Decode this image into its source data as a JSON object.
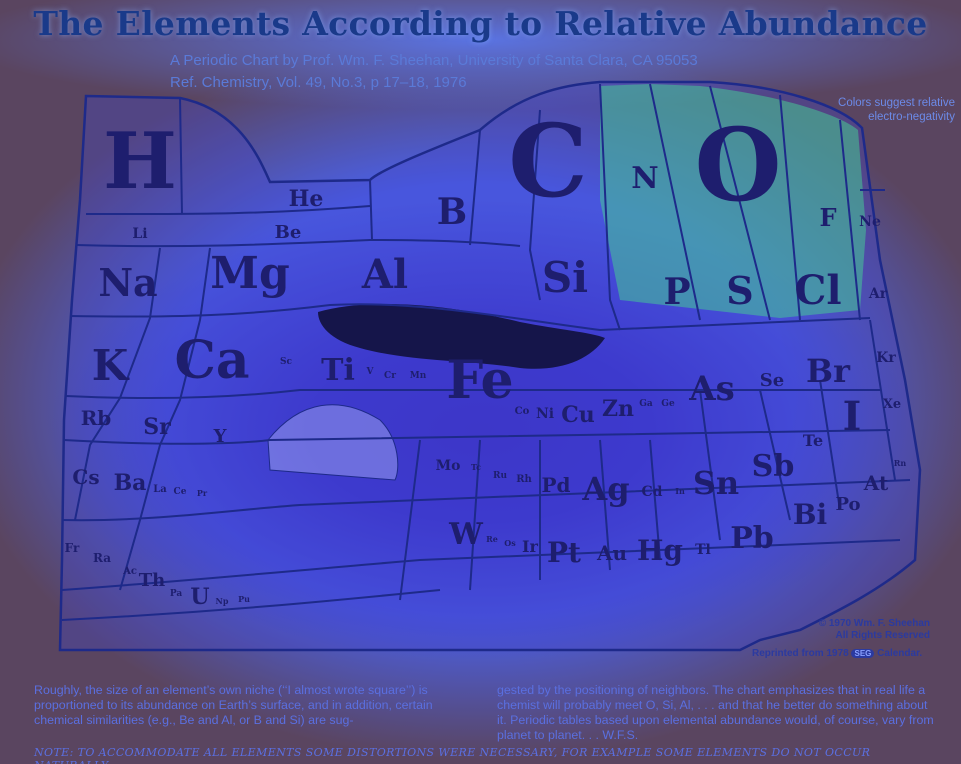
{
  "header": {
    "title": "The Elements According to Relative Abundance",
    "subtitle_line1": "A Periodic Chart by Prof. Wm. F. Sheehan, University of Santa Clara, CA 95053",
    "subtitle_line2": "Ref. Chemistry, Vol. 49, No.3, p 17–18, 1976"
  },
  "side_note": "Colors suggest relative electro-negativity",
  "copyright": {
    "line1": "© 1970 Wm. F. Sheehan",
    "line2": "All Rights Reserved",
    "reprint": "Reprinted from 1978",
    "badge": "SEG",
    "calendar": "Calendar."
  },
  "body": {
    "left": "Roughly, the size of an element’s own niche (‘‘I almost wrote square’’) is proportioned to its abundance on Earth’s surface, and in addition, certain chemical similarities (e.g., Be and Al, or B and Si) are sug-",
    "right": "gested by the positioning of neighbors. The chart emphasizes that in real life a chemist will probably meet O, Si, Al, . . . and that he better do something about it. Periodic tables based upon elemental abundance would, of course, vary from planet to planet. . . W.F.S."
  },
  "footnote": "NOTE: TO ACCOMMODATE ALL ELEMENTS SOME DISTORTIONS WERE NECESSARY, FOR EXAMPLE SOME ELEMENTS DO NOT OCCUR NATURALLY.",
  "elements": [
    {
      "sym": "H",
      "size": 78
    },
    {
      "sym": "He",
      "size": 22
    },
    {
      "sym": "Li",
      "size": 14
    },
    {
      "sym": "Be",
      "size": 18
    },
    {
      "sym": "B",
      "size": 36
    },
    {
      "sym": "C",
      "size": 100
    },
    {
      "sym": "N",
      "size": 30
    },
    {
      "sym": "O",
      "size": 100
    },
    {
      "sym": "F",
      "size": 24
    },
    {
      "sym": "Ne",
      "size": 14
    },
    {
      "sym": "Na",
      "size": 38
    },
    {
      "sym": "Mg",
      "size": 44
    },
    {
      "sym": "Al",
      "size": 40
    },
    {
      "sym": "Si",
      "size": 42
    },
    {
      "sym": "P",
      "size": 36
    },
    {
      "sym": "S",
      "size": 38
    },
    {
      "sym": "Cl",
      "size": 40
    },
    {
      "sym": "Ar",
      "size": 14
    },
    {
      "sym": "K",
      "size": 42
    },
    {
      "sym": "Ca",
      "size": 52
    },
    {
      "sym": "Sc",
      "size": 9
    },
    {
      "sym": "Ti",
      "size": 30
    },
    {
      "sym": "V",
      "size": 9
    },
    {
      "sym": "Cr",
      "size": 9
    },
    {
      "sym": "Mn",
      "size": 9
    },
    {
      "sym": "Fe",
      "size": 52
    },
    {
      "sym": "Co",
      "size": 10
    },
    {
      "sym": "Ni",
      "size": 14
    },
    {
      "sym": "Cu",
      "size": 22
    },
    {
      "sym": "Zn",
      "size": 22
    },
    {
      "sym": "Ga",
      "size": 9
    },
    {
      "sym": "Ge",
      "size": 9
    },
    {
      "sym": "As",
      "size": 34
    },
    {
      "sym": "Se",
      "size": 18
    },
    {
      "sym": "Br",
      "size": 32
    },
    {
      "sym": "Kr",
      "size": 14
    },
    {
      "sym": "Rb",
      "size": 20
    },
    {
      "sym": "Sr",
      "size": 22
    },
    {
      "sym": "Y",
      "size": 18
    },
    {
      "sym": "Mo",
      "size": 14
    },
    {
      "sym": "Tc",
      "size": 8
    },
    {
      "sym": "Ru",
      "size": 9
    },
    {
      "sym": "Rh",
      "size": 10
    },
    {
      "sym": "Pd",
      "size": 20
    },
    {
      "sym": "Ag",
      "size": 32
    },
    {
      "sym": "Cd",
      "size": 14
    },
    {
      "sym": "In",
      "size": 8
    },
    {
      "sym": "Sn",
      "size": 32
    },
    {
      "sym": "Sb",
      "size": 30
    },
    {
      "sym": "Te",
      "size": 16
    },
    {
      "sym": "I",
      "size": 40
    },
    {
      "sym": "Xe",
      "size": 13
    },
    {
      "sym": "Cs",
      "size": 20
    },
    {
      "sym": "Ba",
      "size": 22
    },
    {
      "sym": "La",
      "size": 10
    },
    {
      "sym": "Ce",
      "size": 9
    },
    {
      "sym": "Pr",
      "size": 8
    },
    {
      "sym": "W",
      "size": 30
    },
    {
      "sym": "Re",
      "size": 8
    },
    {
      "sym": "Os",
      "size": 8
    },
    {
      "sym": "Ir",
      "size": 16
    },
    {
      "sym": "Pt",
      "size": 28
    },
    {
      "sym": "Au",
      "size": 20
    },
    {
      "sym": "Hg",
      "size": 28
    },
    {
      "sym": "Tl",
      "size": 14
    },
    {
      "sym": "Pb",
      "size": 30
    },
    {
      "sym": "Bi",
      "size": 28
    },
    {
      "sym": "Po",
      "size": 18
    },
    {
      "sym": "At",
      "size": 20
    },
    {
      "sym": "Rn",
      "size": 8
    },
    {
      "sym": "Fr",
      "size": 12
    },
    {
      "sym": "Ra",
      "size": 12
    },
    {
      "sym": "Ac",
      "size": 10
    },
    {
      "sym": "Th",
      "size": 18
    },
    {
      "sym": "Pa",
      "size": 9
    },
    {
      "sym": "U",
      "size": 22
    },
    {
      "sym": "Np",
      "size": 8
    },
    {
      "sym": "Pu",
      "size": 8
    }
  ]
}
